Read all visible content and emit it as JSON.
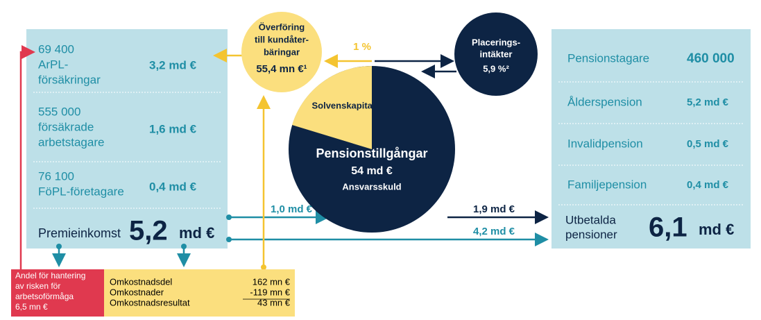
{
  "left_panel": {
    "rows": [
      {
        "lines": [
          "69 400",
          "ArPL-",
          "försäkringar"
        ],
        "amount": "3,2 md €"
      },
      {
        "lines": [
          "555 000",
          "försäkrade",
          "arbetstagare"
        ],
        "amount": "1,6 md €"
      },
      {
        "lines": [
          "76 100",
          "FöPL-företagare"
        ],
        "amount": "0,4 md €"
      }
    ],
    "total": {
      "label": "Premieinkomst",
      "value": "5,2",
      "unit": "md €"
    }
  },
  "transfer_circle": {
    "lines": [
      "Överföring",
      "till kundåter-",
      "bäringar",
      "55,4 mn €¹"
    ]
  },
  "investment_circle": {
    "lines": [
      "Placerings-",
      "intäkter",
      "5,9 %²"
    ]
  },
  "pie": {
    "slice_label": "Solvenskapital",
    "title": "Pensionstillgångar",
    "value": "54 md  €",
    "subtitle": "Ansvarsskuld"
  },
  "flows": {
    "one_percent": "1 %",
    "premium_in": "1,0 md €",
    "from_assets": "1,9 md €",
    "direct": "4,2 md €"
  },
  "right_panel": {
    "rows": [
      {
        "label": "Pensionstagare",
        "value": "460 000"
      },
      {
        "label": "Ålderspension",
        "value": "5,2 md €"
      },
      {
        "label": "Invalidpension",
        "value": "0,5 md €"
      },
      {
        "label": "Familjepension",
        "value": "0,4 md €"
      }
    ],
    "total": {
      "lines": [
        "Utbetalda",
        "pensioner"
      ],
      "value": "6,1",
      "unit": "md €"
    }
  },
  "risk_box": {
    "lines": [
      "Andel för hantering",
      "av risken för",
      "arbetsoförmåga",
      "6,5 mn €"
    ]
  },
  "cost_box": {
    "rows": [
      {
        "label": "Omkostnadsdel",
        "value": "162 mn €"
      },
      {
        "label": "Omkostnader",
        "value": "-119 mn €"
      },
      {
        "label": "Omkostnadsresultat",
        "value": "43 mn €"
      }
    ]
  }
}
